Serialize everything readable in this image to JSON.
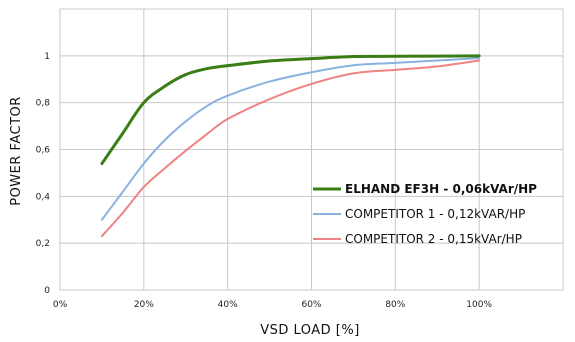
{
  "chart_data": {
    "type": "line",
    "title": "",
    "xlabel": "VSD  LOAD [%]",
    "ylabel": "POWER FACTOR",
    "xlim": [
      0,
      120
    ],
    "ylim": [
      0,
      1.2
    ],
    "x_ticks": [
      0,
      20,
      40,
      60,
      80,
      100
    ],
    "x_tick_labels": [
      "0%",
      "20%",
      "40%",
      "60%",
      "80%",
      "100%"
    ],
    "y_ticks": [
      0,
      0.2,
      0.4,
      0.6,
      0.8,
      1.0
    ],
    "y_tick_labels": [
      "0",
      "0,2",
      "0,4",
      "0,6",
      "0,8",
      "1"
    ],
    "grid": true,
    "legend_position": "bottom-right",
    "series": [
      {
        "name": "ELHAND EF3H - 0,06kVAr/HP",
        "color": "#3a7d14",
        "bold": true,
        "x": [
          10,
          15,
          20,
          25,
          30,
          35,
          40,
          50,
          60,
          70,
          80,
          100
        ],
        "y": [
          0.54,
          0.67,
          0.8,
          0.87,
          0.92,
          0.945,
          0.958,
          0.978,
          0.988,
          0.997,
          0.998,
          1.0
        ]
      },
      {
        "name": "COMPETITOR 1 - 0,12kVAR/HP",
        "color": "#8bb1e0",
        "bold": false,
        "x": [
          10,
          15,
          20,
          25,
          30,
          35,
          40,
          50,
          60,
          70,
          80,
          90,
          100
        ],
        "y": [
          0.3,
          0.42,
          0.54,
          0.64,
          0.72,
          0.785,
          0.83,
          0.89,
          0.93,
          0.96,
          0.97,
          0.98,
          0.99
        ]
      },
      {
        "name": "COMPETITOR 2 - 0,15kVAr/HP",
        "color": "#ef8383",
        "bold": false,
        "x": [
          10,
          15,
          20,
          25,
          30,
          35,
          40,
          50,
          60,
          70,
          80,
          90,
          100
        ],
        "y": [
          0.23,
          0.33,
          0.44,
          0.52,
          0.595,
          0.665,
          0.73,
          0.815,
          0.88,
          0.925,
          0.94,
          0.955,
          0.98
        ]
      }
    ]
  }
}
